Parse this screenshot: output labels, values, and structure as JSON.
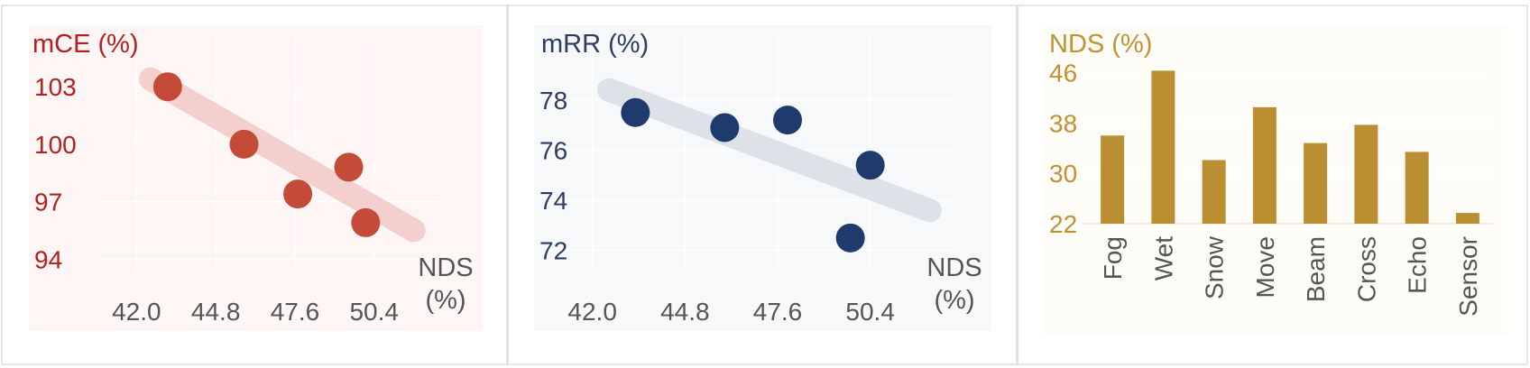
{
  "colors": {
    "mce": "#b3201f",
    "mce_point": "#c44b38",
    "mce_trend": "#f3cfcd",
    "mce_bg": "#fdf6f5",
    "mrr_label": "#2b3d63",
    "mrr_point": "#1f3b6e",
    "mrr_trend": "#dde1e8",
    "mrr_bg": "#f6f8fa",
    "nds_label": "#bf9232",
    "nds_bar": "#b98f31",
    "nds_bg": "#fdfcf6",
    "tick": "#555555",
    "border": "#dddddd"
  },
  "chart_data": [
    {
      "type": "scatter",
      "ylabel": "mCE (%)",
      "xlabel": "NDS (%)",
      "x_ticks": [
        "42.0",
        "44.8",
        "47.6",
        "50.4"
      ],
      "y_ticks": [
        "94",
        "97",
        "100",
        "103"
      ],
      "xlim": [
        41.0,
        52.8
      ],
      "ylim": [
        93.4,
        104.8
      ],
      "points": [
        {
          "x": 43.1,
          "y": 103.0
        },
        {
          "x": 45.8,
          "y": 100.0
        },
        {
          "x": 47.7,
          "y": 97.4
        },
        {
          "x": 49.5,
          "y": 98.8
        },
        {
          "x": 50.1,
          "y": 95.9
        }
      ],
      "trend": [
        [
          42.5,
          103.4
        ],
        [
          51.8,
          95.5
        ]
      ]
    },
    {
      "type": "scatter",
      "ylabel": "mRR (%)",
      "xlabel": "NDS (%)",
      "x_ticks": [
        "42.0",
        "44.8",
        "47.6",
        "50.4"
      ],
      "y_ticks": [
        "72",
        "74",
        "76",
        "78"
      ],
      "xlim": [
        41.0,
        53.0
      ],
      "ylim": [
        71.2,
        79.9
      ],
      "points": [
        {
          "x": 43.3,
          "y": 77.5
        },
        {
          "x": 46.0,
          "y": 76.9
        },
        {
          "x": 47.9,
          "y": 77.2
        },
        {
          "x": 49.8,
          "y": 72.5
        },
        {
          "x": 50.4,
          "y": 75.4
        }
      ],
      "trend": [
        [
          42.5,
          78.4
        ],
        [
          52.2,
          73.6
        ]
      ]
    },
    {
      "type": "bar",
      "ylabel": "NDS (%)",
      "categories": [
        "Fog",
        "Wet",
        "Snow",
        "Move",
        "Beam",
        "Cross",
        "Echo",
        "Sensor"
      ],
      "values": [
        36.0,
        46.3,
        32.1,
        40.5,
        34.8,
        37.7,
        33.4,
        23.7
      ],
      "y_ticks": [
        "22",
        "30",
        "38",
        "46"
      ],
      "ylim": [
        22,
        47.5
      ]
    }
  ]
}
